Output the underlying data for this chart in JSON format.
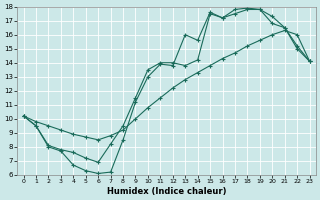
{
  "xlabel": "Humidex (Indice chaleur)",
  "xlim": [
    -0.5,
    23.5
  ],
  "ylim": [
    6,
    18
  ],
  "xticks": [
    0,
    1,
    2,
    3,
    4,
    5,
    6,
    7,
    8,
    9,
    10,
    11,
    12,
    13,
    14,
    15,
    16,
    17,
    18,
    19,
    20,
    21,
    22,
    23
  ],
  "yticks": [
    6,
    7,
    8,
    9,
    10,
    11,
    12,
    13,
    14,
    15,
    16,
    17,
    18
  ],
  "background_color": "#cce8e8",
  "grid_color": "#b0d8d8",
  "line_color": "#1a6b5a",
  "line1_x": [
    0,
    1,
    2,
    3,
    4,
    5,
    6,
    7,
    8,
    9,
    10,
    11,
    12,
    13,
    14,
    15,
    16,
    17,
    18,
    19,
    20,
    21,
    22,
    23
  ],
  "line1_y": [
    10.2,
    9.5,
    8.0,
    7.7,
    6.7,
    6.3,
    6.1,
    6.2,
    8.5,
    11.2,
    13.0,
    13.9,
    13.8,
    16.0,
    15.6,
    17.6,
    17.2,
    17.8,
    17.9,
    17.8,
    17.3,
    16.5,
    15.0,
    14.1
  ],
  "line2_x": [
    0,
    1,
    2,
    3,
    4,
    5,
    6,
    7,
    8,
    9,
    10,
    11,
    12,
    13,
    14,
    15,
    16,
    17,
    18,
    19,
    20,
    21,
    22,
    23
  ],
  "line2_y": [
    10.2,
    9.5,
    8.1,
    7.8,
    7.6,
    7.2,
    6.9,
    8.2,
    9.5,
    11.5,
    13.5,
    14.0,
    14.0,
    13.8,
    14.2,
    17.5,
    17.2,
    17.5,
    17.8,
    17.8,
    16.8,
    16.5,
    15.2,
    14.1
  ],
  "line3_x": [
    0,
    1,
    2,
    3,
    4,
    5,
    6,
    7,
    8,
    9,
    10,
    11,
    12,
    13,
    14,
    15,
    16,
    17,
    18,
    19,
    20,
    21,
    22,
    23
  ],
  "line3_y": [
    10.2,
    9.8,
    9.5,
    9.2,
    8.9,
    8.7,
    8.5,
    8.8,
    9.2,
    10.0,
    10.8,
    11.5,
    12.2,
    12.8,
    13.3,
    13.8,
    14.3,
    14.7,
    15.2,
    15.6,
    16.0,
    16.3,
    16.0,
    14.1
  ]
}
